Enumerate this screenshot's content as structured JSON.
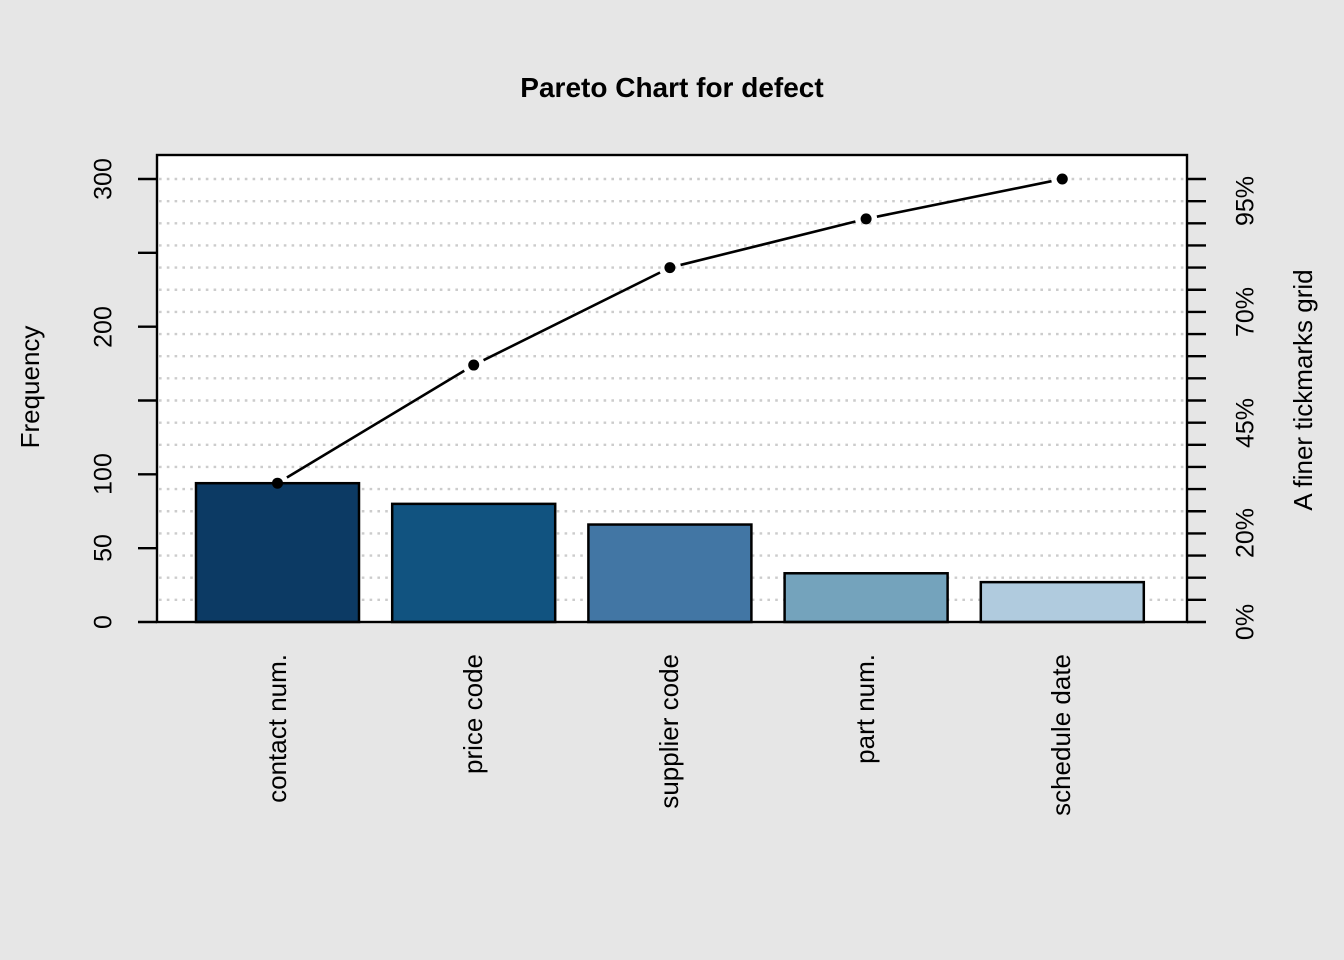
{
  "title": "Pareto Chart for defect",
  "axes": {
    "left_label": "Frequency",
    "right_label": "A finer tickmarks grid"
  },
  "chart_data": {
    "type": "bar",
    "subtype": "pareto-chart-with-cumulative-line",
    "title": "Pareto Chart for defect",
    "categories": [
      "contact num.",
      "price code",
      "supplier code",
      "part num.",
      "schedule date"
    ],
    "values": [
      94,
      80,
      66,
      33,
      27
    ],
    "total": 300,
    "cumulative": [
      94,
      174,
      240,
      273,
      300
    ],
    "cumulative_pct": [
      31.3,
      58.0,
      80.0,
      91.0,
      100.0
    ],
    "ylabel_left": "Frequency",
    "ylabel_right": "A finer tickmarks grid",
    "left_axis": {
      "range": [
        0,
        300
      ],
      "ticks": [
        0,
        50,
        100,
        150,
        200,
        250,
        300
      ],
      "labeled_ticks": [
        0,
        50,
        100,
        200,
        300
      ],
      "tick_labels": [
        "0",
        "50",
        "100",
        "200",
        "300"
      ]
    },
    "right_axis": {
      "range_pct": [
        0,
        100
      ],
      "fine_tick_step_pct": 5,
      "labeled_values_pct": [
        0,
        20,
        45,
        70,
        95
      ],
      "tick_labels": [
        "0%",
        "20%",
        "45%",
        "70%",
        "95%"
      ]
    },
    "grid": {
      "style": "dotted",
      "horizontal_every_pct": 5,
      "color": "#cccccc"
    },
    "legend": "none",
    "colors": {
      "bars": [
        "#0c3a64",
        "#115380",
        "#4276a4",
        "#74a3bc",
        "#b0cbde"
      ],
      "bar_border": "#000000",
      "cumulative_line": "#000000",
      "cumulative_point": "#000000",
      "plot_background": "#ffffff",
      "page_background": "#e6e6e6",
      "axis": "#000000"
    }
  }
}
